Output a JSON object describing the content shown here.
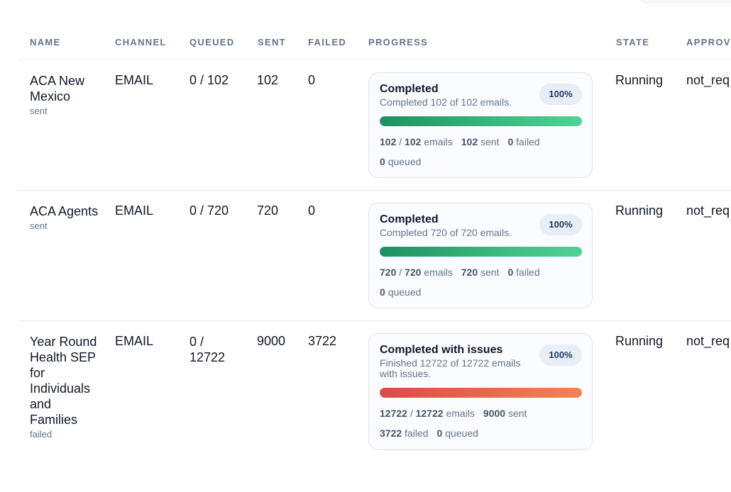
{
  "columns": [
    "NAME",
    "CHANNEL",
    "QUEUED",
    "SENT",
    "FAILED",
    "PROGRESS",
    "STATE",
    "APPROV"
  ],
  "rows": [
    {
      "name": "ACA New Mexico",
      "status": "sent",
      "channel": "EMAIL",
      "queued": "0 / 102",
      "sent": "102",
      "failed": "0",
      "state": "Running",
      "approval": "not_req",
      "progress": {
        "title": "Completed",
        "description": "Completed 102 of 102 emails.",
        "percent_label": "100%",
        "fill_fraction": 1.0,
        "bar_color": "green",
        "stat_done": "102",
        "stat_total": "102",
        "stat_total_label": "emails",
        "stat_sent": "102",
        "stat_sent_label": "sent",
        "stat_failed": "0",
        "stat_failed_label": "failed",
        "stat_queued": "0",
        "stat_queued_label": "queued"
      }
    },
    {
      "name": "ACA Agents",
      "status": "sent",
      "channel": "EMAIL",
      "queued": "0 / 720",
      "sent": "720",
      "failed": "0",
      "state": "Running",
      "approval": "not_req",
      "progress": {
        "title": "Completed",
        "description": "Completed 720 of 720 emails.",
        "percent_label": "100%",
        "fill_fraction": 1.0,
        "bar_color": "green",
        "stat_done": "720",
        "stat_total": "720",
        "stat_total_label": "emails",
        "stat_sent": "720",
        "stat_sent_label": "sent",
        "stat_failed": "0",
        "stat_failed_label": "failed",
        "stat_queued": "0",
        "stat_queued_label": "queued"
      }
    },
    {
      "name": "Year Round Health SEP for Individuals and Families",
      "status": "failed",
      "channel": "EMAIL",
      "queued": "0 / 12722",
      "sent": "9000",
      "failed": "3722",
      "state": "Running",
      "approval": "not_req",
      "progress": {
        "title": "Completed with issues",
        "description": "Finished 12722 of 12722 emails with issues.",
        "percent_label": "100%",
        "fill_fraction": 1.0,
        "bar_color": "red",
        "stat_done": "12722",
        "stat_total": "12722",
        "stat_total_label": "emails",
        "stat_sent": "9000",
        "stat_sent_label": "sent",
        "stat_failed": "3722",
        "stat_failed_label": "failed",
        "stat_queued": "0",
        "stat_queued_label": "queued"
      }
    }
  ],
  "colors": {
    "bar_green_start": "#1f9160",
    "bar_green_end": "#4fd494",
    "bar_red_start": "#d94b4b",
    "bar_red_end": "#f0854f"
  }
}
